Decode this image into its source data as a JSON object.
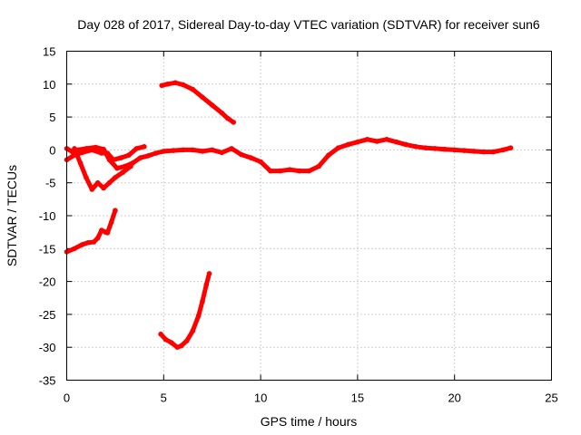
{
  "chart_data": {
    "type": "line",
    "title": "Day 028 of 2017, Sidereal Day-to-day VTEC variation (SDTVAR) for receiver sun6",
    "xlabel": "GPS time / hours",
    "ylabel": "SDTVAR / TECUs",
    "xlim": [
      0,
      25
    ],
    "ylim": [
      -35,
      15
    ],
    "xticks": [
      0,
      5,
      10,
      15,
      20,
      25
    ],
    "yticks": [
      15,
      10,
      5,
      0,
      -5,
      -10,
      -15,
      -20,
      -25,
      -30,
      -35
    ],
    "grid": true,
    "legend": "none",
    "color": "#ff0000",
    "series": [
      {
        "name": "main-trace",
        "points": [
          [
            0,
            0.2
          ],
          [
            0.3,
            -0.3
          ],
          [
            0.6,
            0
          ],
          [
            1,
            0.2
          ],
          [
            1.5,
            0.4
          ],
          [
            1.9,
            0.1
          ],
          [
            2.2,
            -1.5
          ],
          [
            2.6,
            -2.8
          ],
          [
            3,
            -2.5
          ],
          [
            3.4,
            -2
          ],
          [
            3.8,
            -1.2
          ],
          [
            4.2,
            -0.9
          ],
          [
            4.6,
            -0.5
          ],
          [
            5,
            -0.2
          ],
          [
            5.5,
            -0.1
          ],
          [
            6,
            0
          ],
          [
            6.5,
            0
          ],
          [
            7,
            -0.2
          ],
          [
            7.5,
            0
          ],
          [
            8,
            -0.4
          ],
          [
            8.5,
            0.2
          ],
          [
            9,
            -0.7
          ],
          [
            9.5,
            -1.2
          ],
          [
            10,
            -1.8
          ],
          [
            10.5,
            -3.2
          ],
          [
            11,
            -3.2
          ],
          [
            11.5,
            -3
          ],
          [
            12,
            -3.2
          ],
          [
            12.5,
            -3.2
          ],
          [
            13,
            -2.5
          ],
          [
            13.5,
            -0.8
          ],
          [
            14,
            0.3
          ],
          [
            14.5,
            0.8
          ],
          [
            15,
            1.2
          ],
          [
            15.5,
            1.6
          ],
          [
            16,
            1.3
          ],
          [
            16.5,
            1.6
          ],
          [
            17,
            1.2
          ],
          [
            17.5,
            0.8
          ],
          [
            18,
            0.5
          ],
          [
            18.5,
            0.3
          ],
          [
            19,
            0.2
          ],
          [
            19.5,
            0.1
          ],
          [
            20,
            0
          ],
          [
            20.5,
            -0.1
          ],
          [
            21,
            -0.2
          ],
          [
            21.5,
            -0.3
          ],
          [
            22,
            -0.3
          ],
          [
            22.5,
            0
          ],
          [
            22.9,
            0.3
          ]
        ]
      },
      {
        "name": "early-dip",
        "points": [
          [
            0.4,
            0.2
          ],
          [
            0.7,
            -2
          ],
          [
            1,
            -4.2
          ],
          [
            1.3,
            -6
          ],
          [
            1.6,
            -5
          ],
          [
            1.9,
            -5.8
          ],
          [
            2.2,
            -5
          ],
          [
            2.5,
            -4.2
          ],
          [
            2.9,
            -3.4
          ],
          [
            3.3,
            -2.5
          ]
        ]
      },
      {
        "name": "cross-segment",
        "points": [
          [
            0,
            -1.5
          ],
          [
            0.4,
            -0.8
          ],
          [
            0.8,
            -0.4
          ],
          [
            1.3,
            0
          ],
          [
            1.8,
            -0.5
          ],
          [
            2.1,
            -0.5
          ],
          [
            2.4,
            -1.5
          ],
          [
            2.8,
            -1.2
          ],
          [
            3.2,
            -0.8
          ],
          [
            3.6,
            0.2
          ],
          [
            4.0,
            0.5
          ]
        ]
      },
      {
        "name": "upper-arc",
        "points": [
          [
            4.9,
            9.8
          ],
          [
            5.2,
            10
          ],
          [
            5.6,
            10.2
          ],
          [
            6,
            9.9
          ],
          [
            6.5,
            9.2
          ],
          [
            7,
            8
          ],
          [
            7.5,
            6.8
          ],
          [
            8,
            5.6
          ],
          [
            8.3,
            4.8
          ],
          [
            8.6,
            4.2
          ]
        ]
      },
      {
        "name": "lower-left-rise",
        "points": [
          [
            0,
            -15.5
          ],
          [
            0.4,
            -15
          ],
          [
            0.8,
            -14.4
          ],
          [
            1.1,
            -14.1
          ],
          [
            1.4,
            -14
          ],
          [
            1.6,
            -13.4
          ],
          [
            1.8,
            -12.2
          ],
          [
            2,
            -12.5
          ],
          [
            2.1,
            -12.6
          ],
          [
            2.3,
            -11
          ],
          [
            2.5,
            -9.2
          ]
        ]
      },
      {
        "name": "bottom-hook",
        "points": [
          [
            4.85,
            -28
          ],
          [
            5.1,
            -28.8
          ],
          [
            5.4,
            -29.3
          ],
          [
            5.7,
            -30
          ],
          [
            5.9,
            -29.8
          ],
          [
            6.2,
            -29
          ],
          [
            6.5,
            -27.5
          ],
          [
            6.8,
            -25.2
          ],
          [
            7.0,
            -23
          ],
          [
            7.2,
            -20.5
          ],
          [
            7.35,
            -18.8
          ]
        ]
      }
    ]
  }
}
